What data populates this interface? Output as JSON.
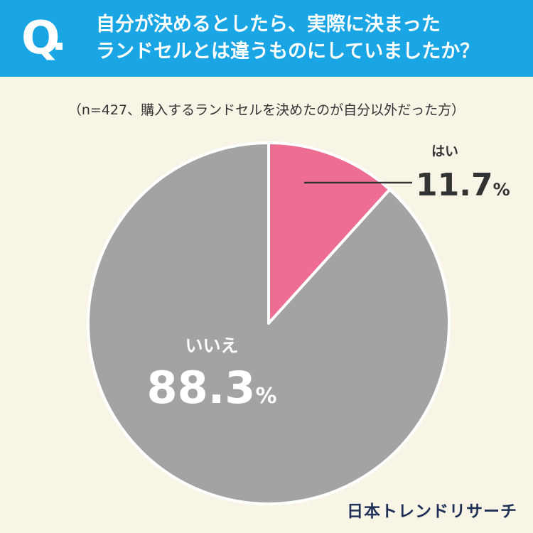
{
  "header": {
    "q_mark": "Q",
    "question": "自分が決めるとしたら、実際に決まった\nランドセルとは違うものにしていましたか？"
  },
  "note": "（n=427、購入するランドセルを決めたのが自分以外だった方）",
  "chart_data": {
    "type": "pie",
    "categories": [
      "はい",
      "いいえ"
    ],
    "values": [
      11.7,
      88.3
    ],
    "value_texts": [
      "11.7",
      "88.3"
    ],
    "unit": "%",
    "colors": [
      "#ee6e93",
      "#a3a3a3"
    ],
    "start_angle": "12 o'clock",
    "direction": "clockwise"
  },
  "brand": "日本トレンドリサーチ"
}
